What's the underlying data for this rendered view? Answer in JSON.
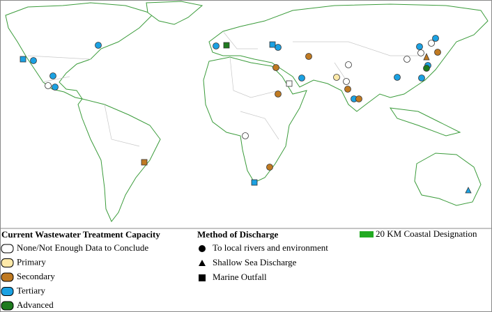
{
  "legend": {
    "capacity": {
      "title": "Current Wastewater Treatment Capacity",
      "items": [
        "None/Not Enough Data to Conclude",
        "Primary",
        "Secondary",
        "Tertiary",
        "Advanced"
      ]
    },
    "method": {
      "title": "Method of Discharge",
      "items": [
        "To local rivers and environment",
        "Shallow Sea Discharge",
        "Marine Outfall"
      ]
    },
    "coastal": "20 KM Coastal Designation"
  }
}
